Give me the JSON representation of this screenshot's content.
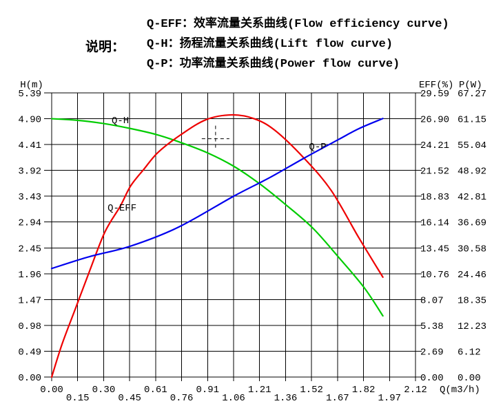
{
  "header": {
    "note_label": "说明：",
    "legend_lines": [
      "Q-EFF：效率流量关系曲线(Flow efficiency curve)",
      "Q-H：扬程流量关系曲线(Lift flow curve)",
      "Q-P：功率流量关系曲线(Power flow curve)"
    ]
  },
  "chart_data": {
    "type": "line",
    "grid": true,
    "background": "#ffffff",
    "grid_color": "#000000",
    "x_axis": {
      "label": "Q(m3/h)",
      "min": 0,
      "max": 2.12,
      "tick_labels": [
        "0.00",
        "0.15",
        "0.30",
        "0.45",
        "0.61",
        "0.76",
        "0.91",
        "1.06",
        "1.21",
        "1.36",
        "1.52",
        "1.67",
        "1.82",
        "1.97",
        "2.12"
      ]
    },
    "left_axis": {
      "label": "H(m)",
      "min": 0,
      "max": 5.39,
      "tick_labels_top_to_bottom": [
        "5.39",
        "4.90",
        "4.41",
        "3.92",
        "3.43",
        "2.94",
        "2.45",
        "1.96",
        "1.47",
        "0.98",
        "0.49",
        "0.00"
      ]
    },
    "right_axis_eff": {
      "label": "EFF(%)",
      "min": 0,
      "max": 29.59,
      "tick_labels_top_to_bottom": [
        "29.59",
        "26.90",
        "24.21",
        "21.52",
        "18.83",
        "16.14",
        "13.45",
        "10.76",
        "8.07",
        "5.38",
        "2.69",
        "0.00"
      ]
    },
    "right_axis_p": {
      "label": "P(W)",
      "min": 0,
      "max": 67.27,
      "tick_labels_top_to_bottom": [
        "67.27",
        "61.15",
        "55.04",
        "48.92",
        "42.81",
        "36.69",
        "30.58",
        "24.46",
        "18.35",
        "12.23",
        "6.12",
        "0.00"
      ]
    },
    "series": [
      {
        "name": "Q-H",
        "axis": "H",
        "color": "#00cc00",
        "label_at": {
          "q": 0.4,
          "v": 4.88
        },
        "points": [
          [
            0.0,
            4.9
          ],
          [
            0.15,
            4.87
          ],
          [
            0.3,
            4.81
          ],
          [
            0.45,
            4.72
          ],
          [
            0.61,
            4.6
          ],
          [
            0.76,
            4.44
          ],
          [
            0.91,
            4.25
          ],
          [
            1.06,
            4.0
          ],
          [
            1.21,
            3.67
          ],
          [
            1.36,
            3.28
          ],
          [
            1.52,
            2.83
          ],
          [
            1.67,
            2.28
          ],
          [
            1.82,
            1.7
          ],
          [
            1.93,
            1.16
          ]
        ]
      },
      {
        "name": "Q-EFF",
        "axis": "EFF",
        "color": "#ee0000",
        "label_at": {
          "q": 0.41,
          "v": 17.7
        },
        "points": [
          [
            0.0,
            0.0
          ],
          [
            0.06,
            3.4
          ],
          [
            0.14,
            7.2
          ],
          [
            0.22,
            11.0
          ],
          [
            0.31,
            15.1
          ],
          [
            0.4,
            17.8
          ],
          [
            0.46,
            19.9
          ],
          [
            0.54,
            21.7
          ],
          [
            0.62,
            23.4
          ],
          [
            0.75,
            25.2
          ],
          [
            0.9,
            26.8
          ],
          [
            1.05,
            27.3
          ],
          [
            1.18,
            26.9
          ],
          [
            1.3,
            25.7
          ],
          [
            1.47,
            22.8
          ],
          [
            1.63,
            19.4
          ],
          [
            1.79,
            14.5
          ],
          [
            1.93,
            10.4
          ]
        ]
      },
      {
        "name": "Q-P",
        "axis": "P",
        "color": "#0000ee",
        "label_at": {
          "q": 1.55,
          "v": 54.7
        },
        "points": [
          [
            0.0,
            25.7
          ],
          [
            0.22,
            28.5
          ],
          [
            0.46,
            31.0
          ],
          [
            0.74,
            35.5
          ],
          [
            1.06,
            42.8
          ],
          [
            1.27,
            47.2
          ],
          [
            1.47,
            51.8
          ],
          [
            1.67,
            56.2
          ],
          [
            1.79,
            58.8
          ],
          [
            1.93,
            61.2
          ]
        ]
      }
    ],
    "duty_marker": {
      "q": 0.955,
      "h": 4.52
    }
  }
}
